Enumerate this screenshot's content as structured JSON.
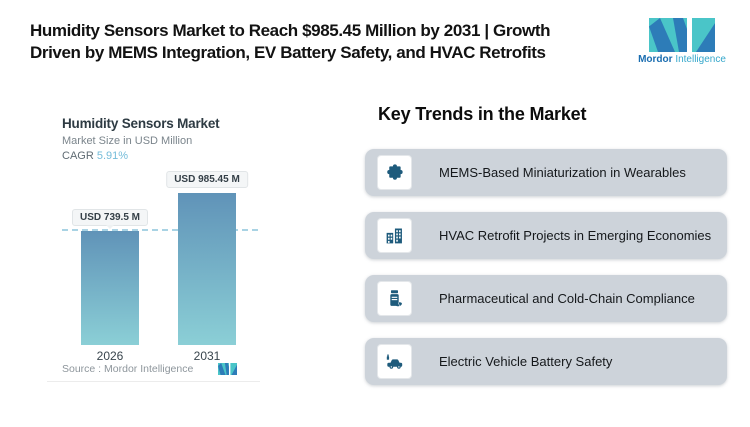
{
  "header": {
    "title_line1": "Humidity Sensors Market to Reach $985.45 Million by 2031 | Growth",
    "title_line2": "Driven by MEMS Integration, EV Battery Safety, and HVAC Retrofits",
    "logo": {
      "brand_bold": "Mordor",
      "brand_light": "Intelligence"
    }
  },
  "chart": {
    "title": "Humidity Sensors Market",
    "subtitle": "Market Size in USD Million",
    "cagr_label": "CAGR",
    "cagr_value": "5.91%",
    "source_label": "Source :  Mordor Intelligence",
    "bars": [
      {
        "year": "2026",
        "label": "USD 739.5 M"
      },
      {
        "year": "2031",
        "label": "USD 985.45 M"
      }
    ]
  },
  "chart_data": {
    "type": "bar",
    "title": "Humidity Sensors Market",
    "ylabel": "Market Size in USD Million",
    "xlabel": "",
    "categories": [
      "2026",
      "2031"
    ],
    "values": [
      739.5,
      985.45
    ],
    "data_labels": [
      "USD 739.5 M",
      "USD 985.45 M"
    ],
    "cagr": "5.91%",
    "reference_line": 739.5,
    "grid": "off",
    "legend": "none",
    "bar_gradient": [
      "#6093b8",
      "#8bcfd6"
    ]
  },
  "trends": {
    "heading": "Key Trends in the Market",
    "items": [
      {
        "icon": "puzzle-icon",
        "label": "MEMS-Based Miniaturization in Wearables"
      },
      {
        "icon": "buildings-icon",
        "label": "HVAC Retrofit Projects in Emerging Economies"
      },
      {
        "icon": "pill-bottle-icon",
        "label": "Pharmaceutical and Cold-Chain Compliance"
      },
      {
        "icon": "ev-car-icon",
        "label": "Electric Vehicle Battery Safety"
      }
    ]
  },
  "colors": {
    "accent_cagr": "#74bcd9",
    "bar_top": "#6093b8",
    "bar_bottom": "#8bcfd6",
    "dashed_line": "#a9d3e4",
    "trend_card_bg": "#cdd3da",
    "trend_icon": "#1e5b7c",
    "logo_teal": "#4ac5c8",
    "logo_blue": "#2d7cb8"
  }
}
